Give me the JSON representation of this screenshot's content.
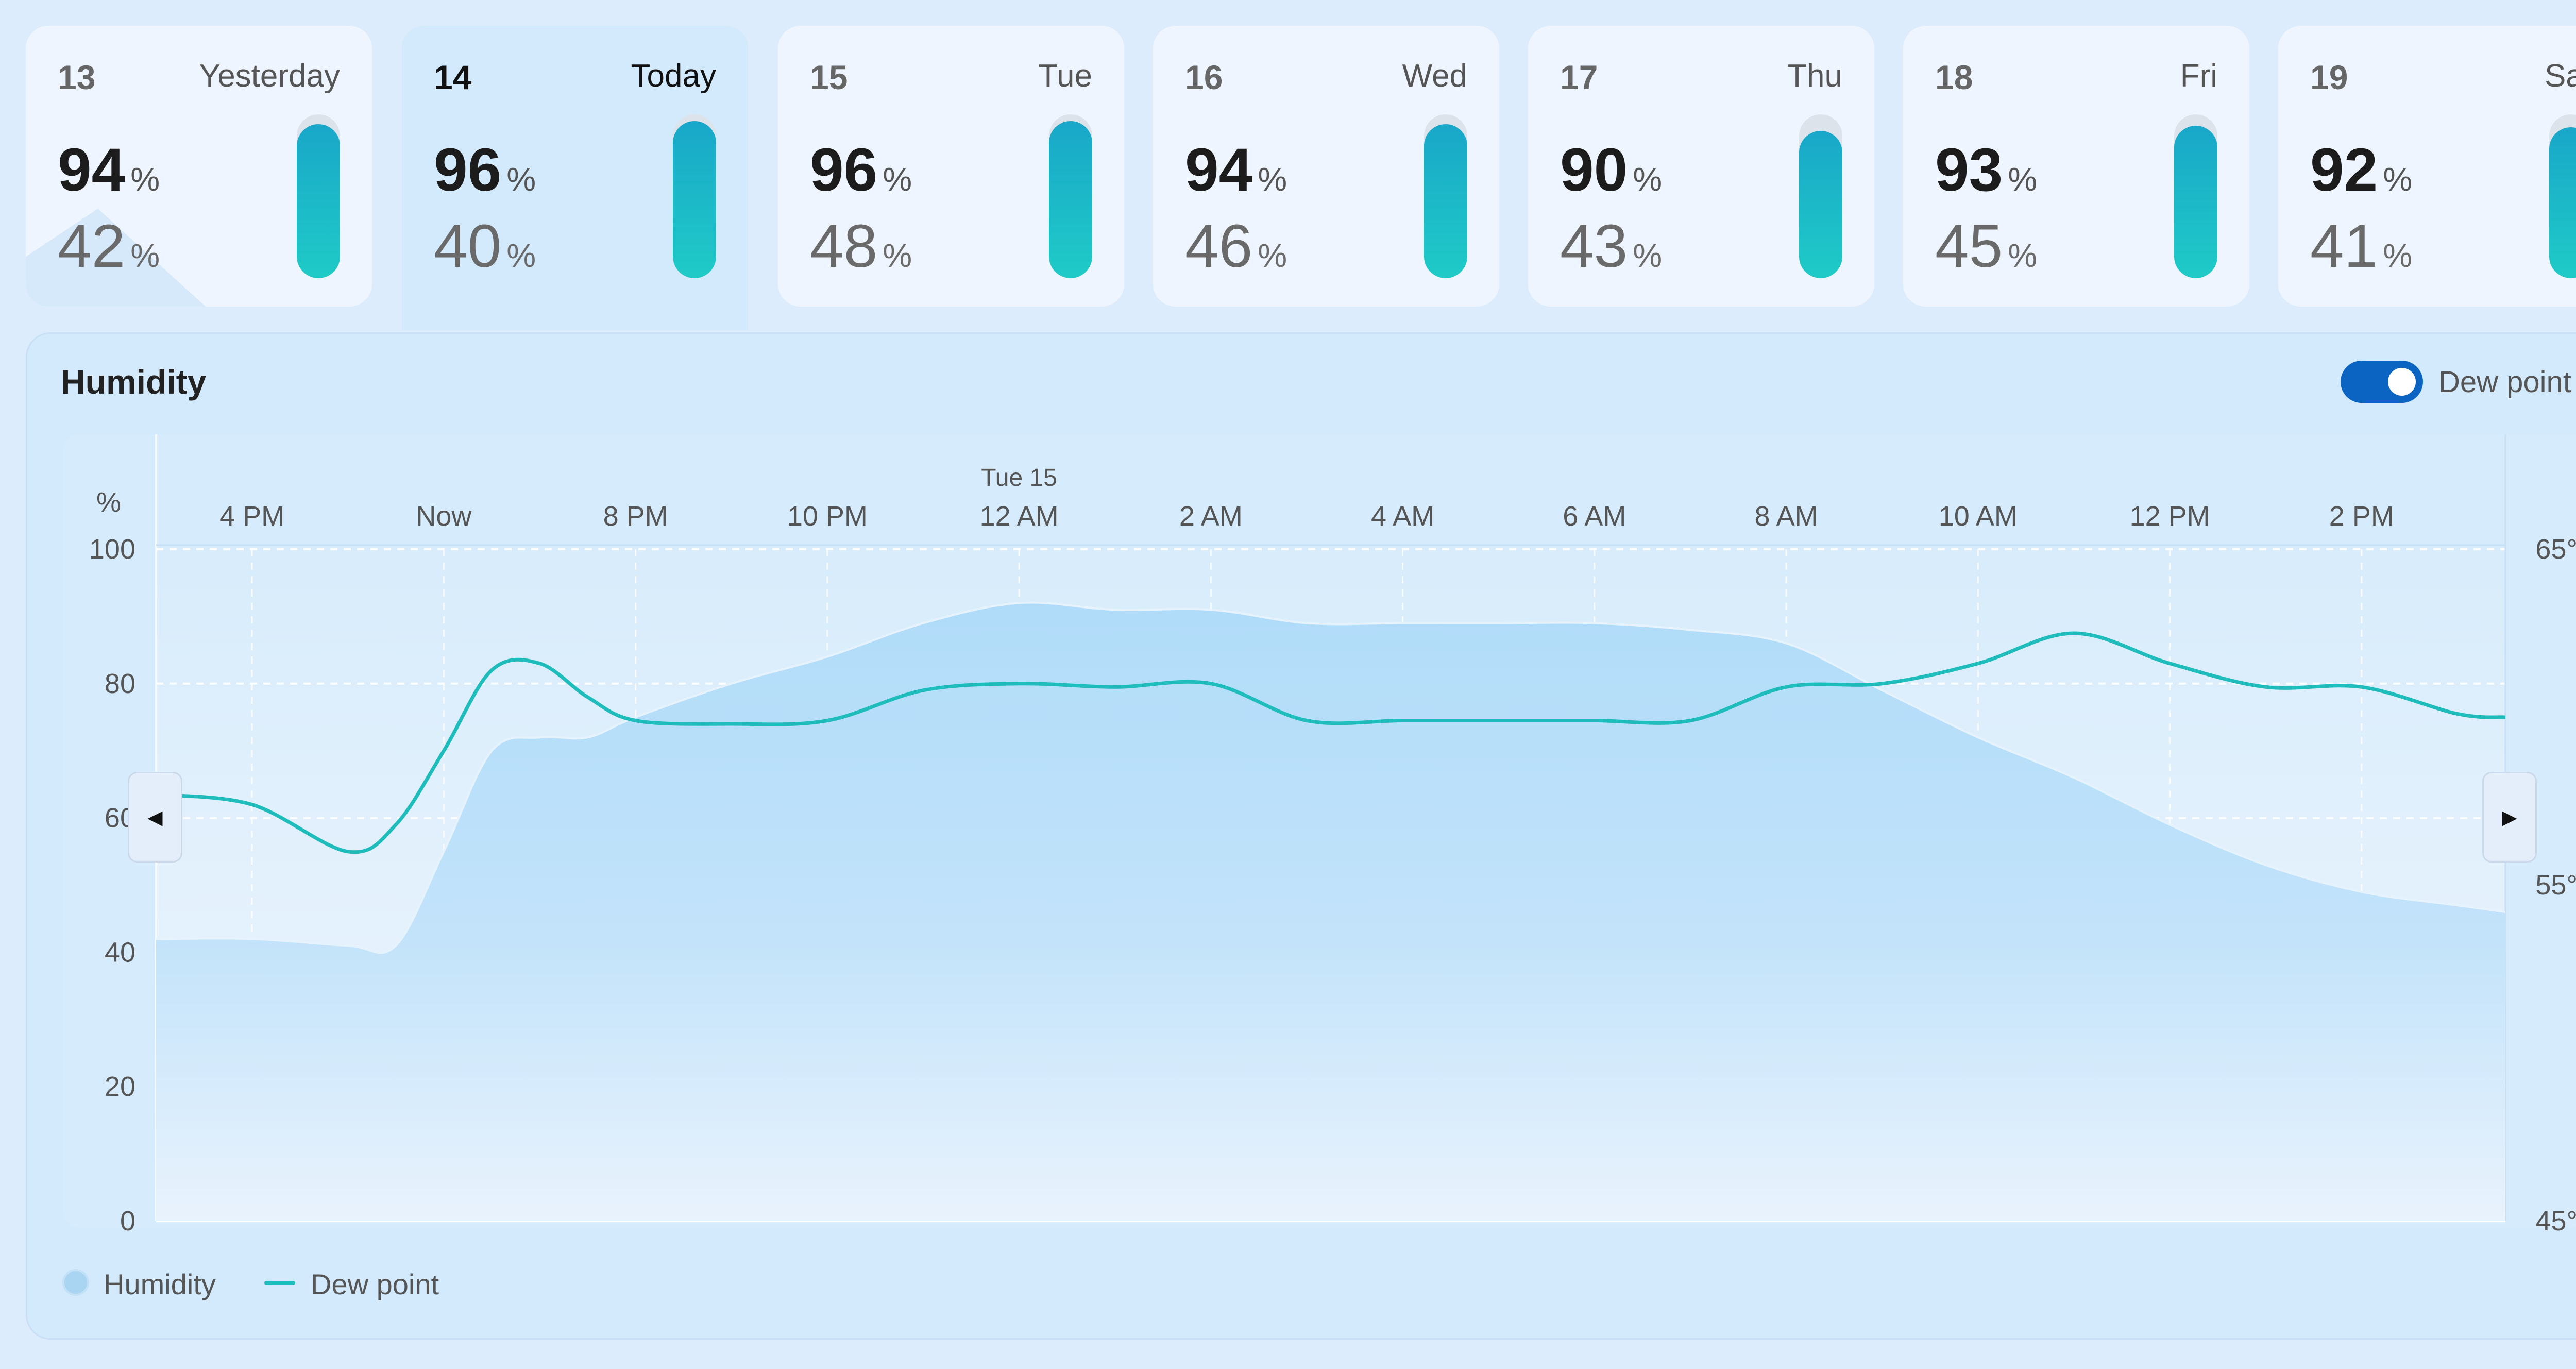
{
  "days": [
    {
      "date": "13",
      "name": "Yesterday",
      "high": "94",
      "low": "42",
      "unit": "%",
      "fill": 0.94
    },
    {
      "date": "14",
      "name": "Today",
      "high": "96",
      "low": "40",
      "unit": "%",
      "fill": 0.96
    },
    {
      "date": "15",
      "name": "Tue",
      "high": "96",
      "low": "48",
      "unit": "%",
      "fill": 0.96
    },
    {
      "date": "16",
      "name": "Wed",
      "high": "94",
      "low": "46",
      "unit": "%",
      "fill": 0.94
    },
    {
      "date": "17",
      "name": "Thu",
      "high": "90",
      "low": "43",
      "unit": "%",
      "fill": 0.9
    },
    {
      "date": "18",
      "name": "Fri",
      "high": "93",
      "low": "45",
      "unit": "%",
      "fill": 0.93
    },
    {
      "date": "19",
      "name": "Sat",
      "high": "92",
      "low": "41",
      "unit": "%",
      "fill": 0.92
    }
  ],
  "panel": {
    "title": "Humidity",
    "toggle_label": "Dew point",
    "legend_humidity": "Humidity",
    "legend_dew": "Dew point"
  },
  "chart_data": {
    "type": "area",
    "title": "Humidity",
    "x_day_label": "Tue 15",
    "x_ticks": [
      "4 PM",
      "Now",
      "8 PM",
      "10 PM",
      "12 AM",
      "2 AM",
      "4 AM",
      "6 AM",
      "8 AM",
      "10 AM",
      "12 PM",
      "2 PM"
    ],
    "x_hours": [
      16,
      18,
      20,
      22,
      24,
      26,
      28,
      30,
      32,
      34,
      36,
      38
    ],
    "xlim": [
      15,
      39.5
    ],
    "y_left_unit": "%",
    "y_left_ticks": [
      100,
      80,
      60,
      40,
      20,
      0
    ],
    "ylim_left": [
      0,
      100
    ],
    "y_right_ticks": [
      "65°",
      "55°",
      "45°"
    ],
    "y_right_values": [
      65,
      55,
      45
    ],
    "ylim_right": [
      45,
      65
    ],
    "series": [
      {
        "name": "Humidity",
        "kind": "area",
        "color": "#b3dffa",
        "x": [
          15,
          16,
          17,
          17.5,
          18,
          18.5,
          19,
          19.5,
          20,
          21,
          22,
          23,
          24,
          25,
          26,
          27,
          28,
          29,
          30,
          31,
          32,
          33,
          34,
          35,
          36,
          37,
          38,
          39,
          39.5
        ],
        "y": [
          42,
          42,
          41,
          41,
          55,
          70,
          72,
          72,
          75,
          80,
          84,
          89,
          92,
          91,
          91,
          89,
          89,
          89,
          89,
          88,
          86,
          79,
          72,
          66,
          59,
          53,
          49,
          47,
          46
        ]
      },
      {
        "name": "Dew point",
        "kind": "line",
        "color": "#1fbcbc",
        "x": [
          15,
          16,
          17,
          17.5,
          18,
          18.5,
          19,
          19.5,
          20,
          21,
          22,
          23,
          24,
          25,
          26,
          27,
          28,
          29,
          30,
          31,
          32,
          33,
          34,
          35,
          36,
          37,
          38,
          39,
          39.5
        ],
        "y": [
          57.7,
          57.4,
          56,
          56.8,
          59,
          61.4,
          61.6,
          60.6,
          59.9,
          59.8,
          59.9,
          60.8,
          61,
          60.9,
          61,
          59.9,
          59.9,
          59.9,
          59.9,
          59.9,
          60.9,
          61,
          61.6,
          62.5,
          61.6,
          60.9,
          60.9,
          60.1,
          60
        ]
      }
    ],
    "grid": true,
    "legend": "bottom-left"
  },
  "colors": {
    "accent": "#0b63c2",
    "bar_top": "#19a7c9",
    "bar_bottom": "#1fcbc7",
    "dew_line": "#1fbcbc",
    "area": "#b3dffa"
  }
}
